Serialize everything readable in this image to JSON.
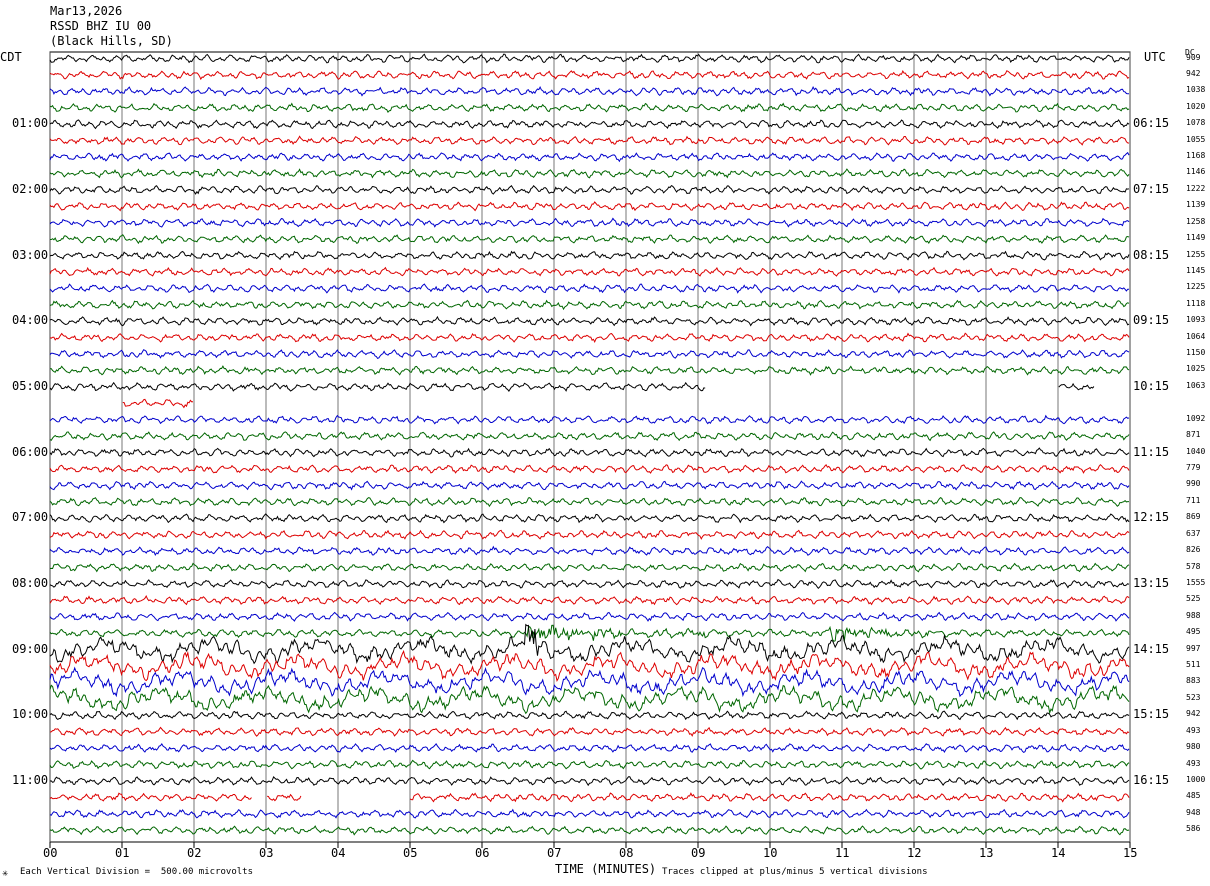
{
  "header": {
    "date": "Mar13,2026",
    "station": "RSSD BHZ IU 00",
    "location": "(Black Hills, SD)"
  },
  "left_axis_label": "CDT",
  "right_axis_label": "UTC",
  "dc_label": "DC",
  "footer": {
    "marker": "✳",
    "scale_note": "Each Vertical Division =  500.00 microvolts",
    "xlabel": "TIME (MINUTES)",
    "clip_note": "Traces clipped at plus/minus 5 vertical divisions"
  },
  "colors": {
    "trace_cycle": [
      "#000000",
      "#dd0000",
      "#0000cc",
      "#006600"
    ],
    "grid": "#555555"
  },
  "chart_data": {
    "type": "line",
    "title": "",
    "xlabel": "TIME (MINUTES)",
    "x_ticks": [
      "00",
      "01",
      "02",
      "03",
      "04",
      "05",
      "06",
      "07",
      "08",
      "09",
      "10",
      "11",
      "12",
      "13",
      "14",
      "15"
    ],
    "xlim": [
      0,
      15
    ],
    "rows": 48,
    "left_hour_labels": [
      "01:00",
      "02:00",
      "03:00",
      "04:00",
      "05:00",
      "06:00",
      "07:00",
      "08:00",
      "09:00",
      "10:00",
      "11:00"
    ],
    "right_hour_labels": [
      "06:15",
      "07:15",
      "08:15",
      "09:15",
      "10:15",
      "11:15",
      "12:15",
      "13:15",
      "14:15",
      "15:15",
      "16:15"
    ],
    "dc_offsets": [
      "909",
      "942",
      "1038",
      "1020",
      "1078",
      "1055",
      "1168",
      "1146",
      "1222",
      "1139",
      "1258",
      "1149",
      "1255",
      "1145",
      "1225",
      "1118",
      "1093",
      "1064",
      "1150",
      "1025",
      "1063",
      "",
      "1092",
      "871",
      "1040",
      "779",
      "990",
      "711",
      "869",
      "637",
      "826",
      "578",
      "1555",
      "525",
      "988",
      "495",
      "997",
      "511",
      "883",
      "523",
      "942",
      "493",
      "980",
      "493",
      "1000",
      "485",
      "948",
      "586"
    ],
    "gaps": [
      {
        "row": 20,
        "from_min": 9.1,
        "to_min": 14.0
      },
      {
        "row": 20,
        "from_min": 14.5,
        "to_min": 15.0
      },
      {
        "row": 21,
        "from_min": 0.0,
        "to_min": 1.0
      },
      {
        "row": 21,
        "from_min": 2.0,
        "to_min": 3.0
      },
      {
        "row": 21,
        "from_min": 3.0,
        "to_min": 15.0
      },
      {
        "row": 45,
        "from_min": 2.8,
        "to_min": 3.0
      },
      {
        "row": 45,
        "from_min": 3.5,
        "to_min": 5.0
      }
    ],
    "events": [
      {
        "row": 35,
        "minute": 6.6,
        "duration_min": 2.5,
        "note": "burst"
      },
      {
        "row": 35,
        "minute": 10.8,
        "duration_min": 1.6,
        "note": "burst"
      },
      {
        "row": 36,
        "minute": 6.6,
        "duration_min": 0.2,
        "note": "spike"
      }
    ],
    "large_amplitude_rows": [
      36,
      37,
      38,
      39
    ]
  }
}
